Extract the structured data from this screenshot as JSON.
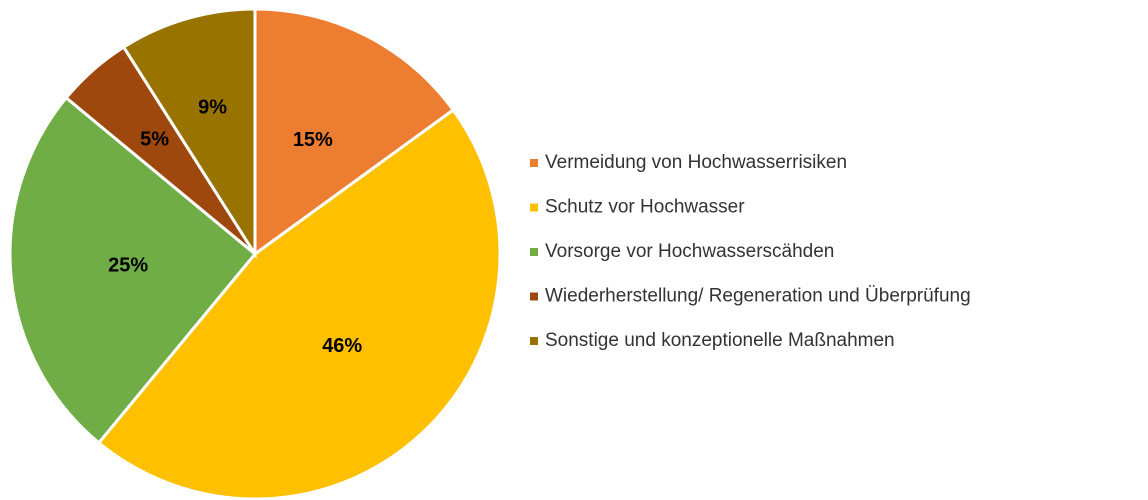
{
  "chart_data": {
    "type": "pie",
    "categories": [
      "Vermeidung von Hochwasserrisiken",
      "Schutz vor Hochwasser",
      "Vorsorge vor Hochwasserscähden",
      "Wiederherstellung/ Regeneration und Überprüfung",
      "Sonstige und konzeptionelle Maßnahmen"
    ],
    "values": [
      15,
      46,
      25,
      5,
      9
    ],
    "value_labels": [
      "15%",
      "46%",
      "25%",
      "5%",
      "9%"
    ],
    "colors": [
      "#ED7D31",
      "#FFC000",
      "#70AD47",
      "#9E480E",
      "#997300"
    ],
    "legend": "right"
  }
}
